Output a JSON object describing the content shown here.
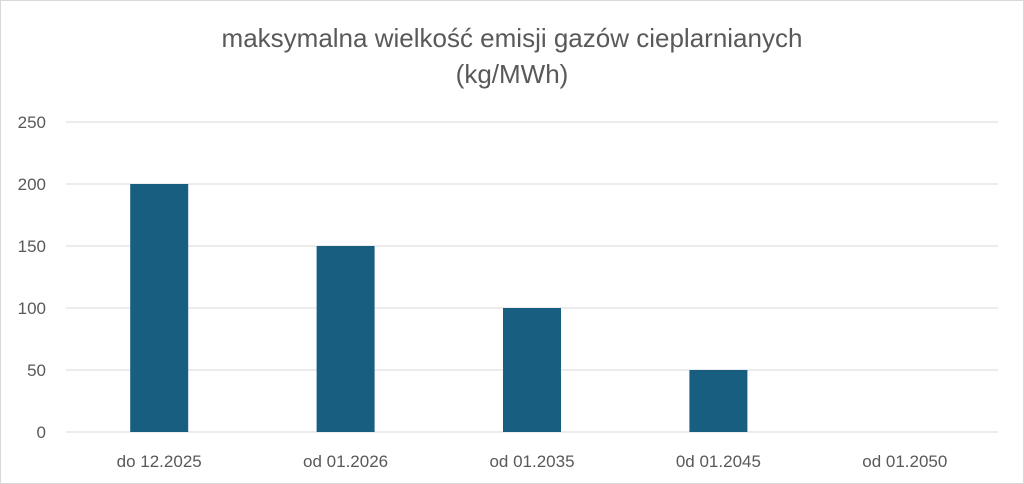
{
  "chart_data": {
    "type": "bar",
    "title": "maksymalna wielkość emisji gazów cieplarnianych",
    "subtitle": "(kg/MWh)",
    "categories": [
      "do 12.2025",
      "od 01.2026",
      "od 01.2035",
      "0d 01.2045",
      "od 01.2050"
    ],
    "values": [
      200,
      150,
      100,
      50,
      0
    ],
    "ylim": [
      0,
      250
    ],
    "yticks": [
      0,
      50,
      100,
      150,
      200,
      250
    ],
    "grid": true,
    "legend": "none",
    "bar_color": "#175e80",
    "grid_color": "#d9d9d9",
    "text_color": "#595959"
  }
}
